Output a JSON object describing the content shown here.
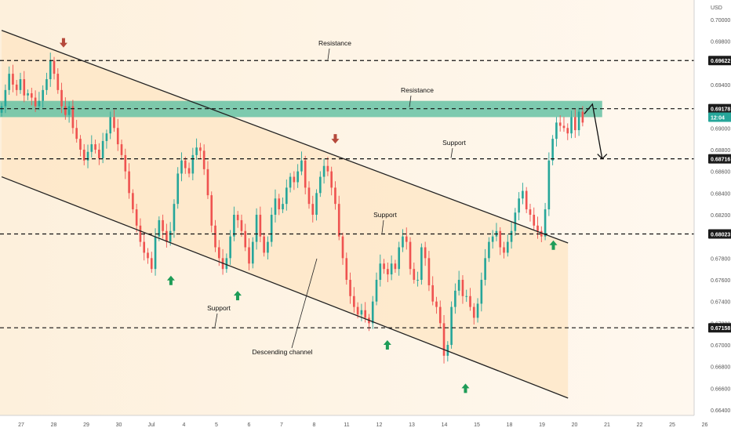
{
  "chart_data": {
    "type": "candlestick",
    "currency": "USD",
    "countdown": "12:04",
    "colors": {
      "bull": "#26a69a",
      "bear": "#ef5350",
      "zone": "#66c2a5",
      "channel_fill": "#fde6c4",
      "arrow_up": "#1e9c57",
      "arrow_down": "#b5493b",
      "price_tag": "#1b1b1b"
    },
    "y_axis": {
      "min": 0.6635,
      "max": 0.7018,
      "ticks": [
        "0.66400",
        "0.66600",
        "0.66800",
        "0.67000",
        "0.67200",
        "0.67400",
        "0.67600",
        "0.67800",
        "0.68200",
        "0.68400",
        "0.68600",
        "0.68800",
        "0.69000",
        "0.69400",
        "0.69800",
        "0.70000"
      ]
    },
    "x_axis": {
      "labels": [
        {
          "text": "27",
          "pos": 0.0
        },
        {
          "text": "28",
          "pos": 1.0
        },
        {
          "text": "29",
          "pos": 2.0
        },
        {
          "text": "30",
          "pos": 3.0
        },
        {
          "text": "Jul",
          "pos": 4.0
        },
        {
          "text": "4",
          "pos": 5.0
        },
        {
          "text": "5",
          "pos": 6.0
        },
        {
          "text": "6",
          "pos": 7.0
        },
        {
          "text": "7",
          "pos": 8.0
        },
        {
          "text": "8",
          "pos": 9.0
        },
        {
          "text": "11",
          "pos": 10.0
        },
        {
          "text": "12",
          "pos": 11.0
        },
        {
          "text": "13",
          "pos": 12.0
        },
        {
          "text": "14",
          "pos": 13.0
        },
        {
          "text": "15",
          "pos": 14.0
        },
        {
          "text": "18",
          "pos": 15.0
        },
        {
          "text": "19",
          "pos": 16.0
        },
        {
          "text": "20",
          "pos": 17.0
        },
        {
          "text": "21",
          "pos": 18.0
        },
        {
          "text": "22",
          "pos": 19.0
        },
        {
          "text": "25",
          "pos": 20.0
        },
        {
          "text": "26",
          "pos": 21.0
        }
      ]
    },
    "levels": [
      {
        "label": "Resistance",
        "value": 0.69622,
        "tag": "0.69622"
      },
      {
        "label": "Support",
        "value": 0.68716,
        "tag": "0.68716"
      },
      {
        "label": "Support",
        "value": 0.68023,
        "tag": "0.68023"
      },
      {
        "label": "Support",
        "value": 0.67158,
        "tag": "0.67158"
      }
    ],
    "zone": {
      "label": "Resistance",
      "top": 0.6925,
      "bottom": 0.691,
      "tag": "0.69178"
    },
    "channel": {
      "label": "Descending channel",
      "upper": [
        {
          "t": -0.6,
          "p": 0.699
        },
        {
          "t": 16.8,
          "p": 0.6794
        }
      ],
      "lower": [
        {
          "t": -0.6,
          "p": 0.6855
        },
        {
          "t": 16.8,
          "p": 0.6651
        }
      ]
    },
    "projection": [
      {
        "t": 17.3,
        "p": 0.6913
      },
      {
        "t": 17.55,
        "p": 0.6922
      },
      {
        "t": 17.85,
        "p": 0.68716
      }
    ],
    "arrows_up": [
      {
        "t": 4.6,
        "p": 0.67595
      },
      {
        "t": 6.65,
        "p": 0.67455
      },
      {
        "t": 11.25,
        "p": 0.67
      },
      {
        "t": 13.65,
        "p": 0.666
      },
      {
        "t": 16.35,
        "p": 0.6792
      }
    ],
    "arrows_down": [
      {
        "t": 1.3,
        "p": 0.69785
      },
      {
        "t": 9.65,
        "p": 0.689
      }
    ],
    "closes": [
      0.692,
      0.6935,
      0.695,
      0.694,
      0.6935,
      0.6945,
      0.693,
      0.6932,
      0.6928,
      0.692,
      0.6925,
      0.6935,
      0.6945,
      0.6962,
      0.695,
      0.6935,
      0.692,
      0.6912,
      0.692,
      0.69,
      0.689,
      0.688,
      0.687,
      0.6878,
      0.6885,
      0.688,
      0.6872,
      0.6888,
      0.6895,
      0.691,
      0.69,
      0.6885,
      0.6875,
      0.686,
      0.684,
      0.6825,
      0.681,
      0.6795,
      0.6785,
      0.678,
      0.677,
      0.68,
      0.6815,
      0.6805,
      0.6795,
      0.6805,
      0.683,
      0.6858,
      0.687,
      0.6863,
      0.6858,
      0.6875,
      0.6882,
      0.6879,
      0.6862,
      0.6838,
      0.681,
      0.679,
      0.678,
      0.677,
      0.678,
      0.68,
      0.682,
      0.6815,
      0.6805,
      0.679,
      0.6775,
      0.6795,
      0.682,
      0.68,
      0.6785,
      0.6795,
      0.682,
      0.6835,
      0.6825,
      0.683,
      0.6845,
      0.6855,
      0.685,
      0.686,
      0.687,
      0.6845,
      0.683,
      0.682,
      0.684,
      0.6855,
      0.6865,
      0.686,
      0.6845,
      0.683,
      0.68,
      0.678,
      0.676,
      0.6745,
      0.6735,
      0.6728,
      0.6732,
      0.6725,
      0.672,
      0.674,
      0.676,
      0.6775,
      0.677,
      0.6765,
      0.6775,
      0.677,
      0.679,
      0.68,
      0.6795,
      0.677,
      0.676,
      0.676,
      0.679,
      0.678,
      0.6755,
      0.674,
      0.6735,
      0.672,
      0.669,
      0.67,
      0.6735,
      0.675,
      0.676,
      0.6745,
      0.6745,
      0.6735,
      0.6725,
      0.6738,
      0.676,
      0.678,
      0.6795,
      0.68,
      0.6805,
      0.679,
      0.6785,
      0.6795,
      0.6805,
      0.6822,
      0.6835,
      0.6842,
      0.6825,
      0.682,
      0.681,
      0.6805,
      0.68,
      0.6825,
      0.687,
      0.689,
      0.6905,
      0.6902,
      0.69,
      0.6895,
      0.691,
      0.6898,
      0.6915,
      0.6905
    ]
  }
}
